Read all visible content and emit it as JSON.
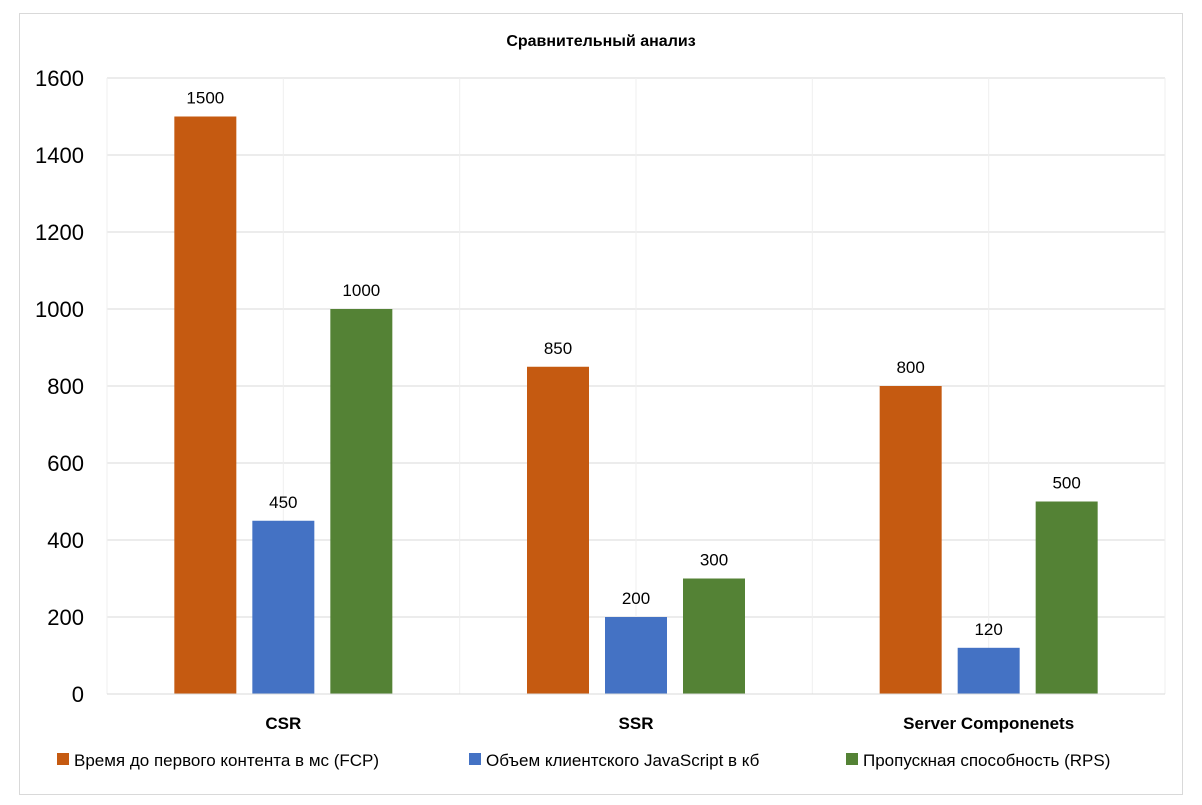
{
  "chart_data": {
    "type": "bar",
    "title": "Сравнительный анализ",
    "categories": [
      "CSR",
      "SSR",
      "Server Componenets"
    ],
    "series": [
      {
        "name": "Время до первого контента в мс (FCP)",
        "values": [
          1500,
          850,
          800
        ],
        "color": "#C55A11"
      },
      {
        "name": "Объем клиентского JavaScript в кб",
        "values": [
          450,
          200,
          120
        ],
        "color": "#4472C4"
      },
      {
        "name": "Пропускная способность (RPS)",
        "values": [
          1000,
          300,
          500
        ],
        "color": "#548235"
      }
    ],
    "ylim": [
      0,
      1600
    ],
    "yticks": [
      0,
      200,
      400,
      600,
      800,
      1000,
      1200,
      1400,
      1600
    ],
    "xlabel": "",
    "ylabel": "",
    "grid": true,
    "legend": "bottom",
    "data_labels": true
  }
}
